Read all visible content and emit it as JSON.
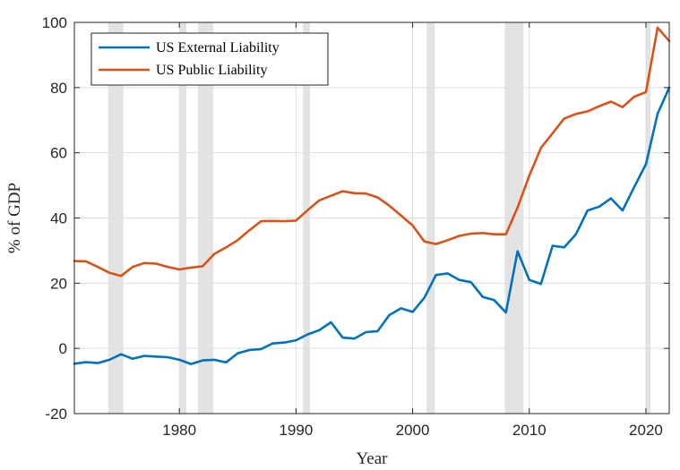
{
  "chart_data": {
    "type": "line",
    "title": "",
    "xlabel": "Year",
    "ylabel": "% of GDP",
    "xlim": [
      1971,
      2022
    ],
    "ylim": [
      -20,
      100
    ],
    "x_ticks": [
      1980,
      1990,
      2000,
      2010,
      2020
    ],
    "y_ticks": [
      -20,
      0,
      20,
      40,
      60,
      80,
      100
    ],
    "grid": true,
    "legend_position": "top-left",
    "recession_bands": [
      [
        1973.9,
        1975.2
      ],
      [
        1980.0,
        1980.6
      ],
      [
        1981.6,
        1982.9
      ],
      [
        1990.6,
        1991.2
      ],
      [
        2001.2,
        2001.9
      ],
      [
        2007.9,
        2009.5
      ],
      [
        2020.0,
        2020.4
      ]
    ],
    "series": [
      {
        "name": "US External Liability",
        "color": "#0072BD",
        "points": [
          [
            1971,
            -4.7
          ],
          [
            1972,
            -4.2
          ],
          [
            1973,
            -4.5
          ],
          [
            1974,
            -3.5
          ],
          [
            1975,
            -1.8
          ],
          [
            1976,
            -3.2
          ],
          [
            1977,
            -2.3
          ],
          [
            1978,
            -2.5
          ],
          [
            1979,
            -2.7
          ],
          [
            1980,
            -3.5
          ],
          [
            1981,
            -4.8
          ],
          [
            1982,
            -3.7
          ],
          [
            1983,
            -3.5
          ],
          [
            1984,
            -4.3
          ],
          [
            1985,
            -1.5
          ],
          [
            1986,
            -0.5
          ],
          [
            1987,
            -0.2
          ],
          [
            1988,
            1.5
          ],
          [
            1989,
            1.8
          ],
          [
            1990,
            2.5
          ],
          [
            1991,
            4.3
          ],
          [
            1992,
            5.6
          ],
          [
            1993,
            8.0
          ],
          [
            1994,
            3.3
          ],
          [
            1995,
            3.0
          ],
          [
            1996,
            5.0
          ],
          [
            1997,
            5.3
          ],
          [
            1998,
            10.2
          ],
          [
            1999,
            12.3
          ],
          [
            2000,
            11.2
          ],
          [
            2001,
            15.5
          ],
          [
            2002,
            22.5
          ],
          [
            2003,
            23.0
          ],
          [
            2004,
            21.0
          ],
          [
            2005,
            20.3
          ],
          [
            2006,
            15.8
          ],
          [
            2007,
            14.8
          ],
          [
            2008,
            11.0
          ],
          [
            2009,
            29.8
          ],
          [
            2010,
            21.0
          ],
          [
            2011,
            19.8
          ],
          [
            2012,
            31.5
          ],
          [
            2013,
            31.0
          ],
          [
            2014,
            35.0
          ],
          [
            2015,
            42.3
          ],
          [
            2016,
            43.5
          ],
          [
            2017,
            46.0
          ],
          [
            2018,
            42.3
          ],
          [
            2019,
            49.5
          ],
          [
            2020,
            56.5
          ],
          [
            2021,
            72.0
          ],
          [
            2022,
            80.0
          ]
        ]
      },
      {
        "name": "US Public Liability",
        "color": "#D95319",
        "points": [
          [
            1971,
            26.8
          ],
          [
            1972,
            26.7
          ],
          [
            1973,
            25.0
          ],
          [
            1974,
            23.2
          ],
          [
            1975,
            22.2
          ],
          [
            1976,
            25.0
          ],
          [
            1977,
            26.2
          ],
          [
            1978,
            26.0
          ],
          [
            1979,
            25.0
          ],
          [
            1980,
            24.2
          ],
          [
            1981,
            24.8
          ],
          [
            1982,
            25.2
          ],
          [
            1983,
            29.0
          ],
          [
            1984,
            31.0
          ],
          [
            1985,
            33.2
          ],
          [
            1986,
            36.2
          ],
          [
            1987,
            39.0
          ],
          [
            1988,
            39.1
          ],
          [
            1989,
            39.0
          ],
          [
            1990,
            39.2
          ],
          [
            1991,
            42.4
          ],
          [
            1992,
            45.4
          ],
          [
            1993,
            46.8
          ],
          [
            1994,
            48.2
          ],
          [
            1995,
            47.6
          ],
          [
            1996,
            47.5
          ],
          [
            1997,
            46.3
          ],
          [
            1998,
            43.8
          ],
          [
            1999,
            40.8
          ],
          [
            2000,
            37.7
          ],
          [
            2001,
            32.8
          ],
          [
            2002,
            32.0
          ],
          [
            2003,
            33.2
          ],
          [
            2004,
            34.5
          ],
          [
            2005,
            35.2
          ],
          [
            2006,
            35.4
          ],
          [
            2007,
            35.0
          ],
          [
            2008,
            35.0
          ],
          [
            2009,
            43.2
          ],
          [
            2010,
            53.0
          ],
          [
            2011,
            61.5
          ],
          [
            2012,
            66.0
          ],
          [
            2013,
            70.5
          ],
          [
            2014,
            71.9
          ],
          [
            2015,
            72.7
          ],
          [
            2016,
            74.3
          ],
          [
            2017,
            75.7
          ],
          [
            2018,
            74.0
          ],
          [
            2019,
            77.2
          ],
          [
            2020,
            78.6
          ],
          [
            2021,
            98.4
          ],
          [
            2022,
            94.3
          ]
        ]
      }
    ]
  }
}
